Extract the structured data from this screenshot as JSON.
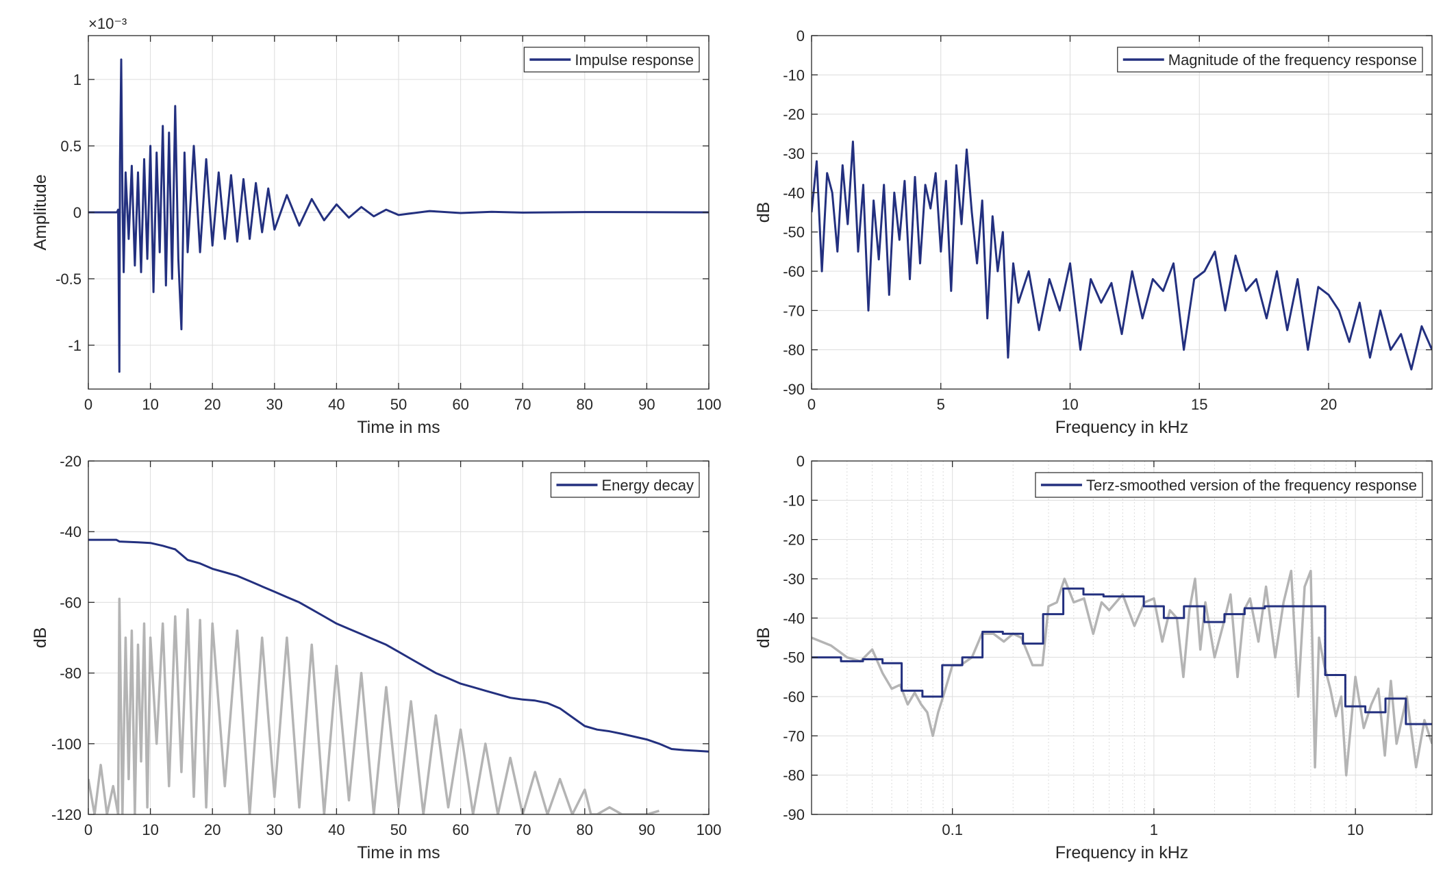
{
  "colors": {
    "series_blue": "#23307f",
    "gray_trace": "#b4b4b4",
    "grid": "#dcdcdc",
    "axis": "#262626"
  },
  "chart_data": [
    {
      "type": "line",
      "legend": [
        "Impulse response"
      ],
      "legend_location": "top-right",
      "xlabel": "Time in ms",
      "ylabel": "Amplitude",
      "exponent_label": "×10⁻³",
      "xlim": [
        0,
        100
      ],
      "ylim": [
        -1.33,
        1.33
      ],
      "xticks": [
        0,
        10,
        20,
        30,
        40,
        50,
        60,
        70,
        80,
        90,
        100
      ],
      "xtick_labels": [
        "0",
        "10",
        "20",
        "30",
        "40",
        "50",
        "60",
        "70",
        "80",
        "90",
        "100"
      ],
      "yticks": [
        -1,
        -0.5,
        0,
        0.5,
        1
      ],
      "ytick_labels": [
        "-1",
        "-0.5",
        "0",
        "0.5",
        "1"
      ],
      "grid": true,
      "series": [
        {
          "color": "#23307f",
          "x": [
            0,
            4.6,
            4.8,
            5.0,
            5.1,
            5.3,
            5.5,
            5.7,
            6.0,
            6.5,
            7,
            7.5,
            8,
            8.5,
            9,
            9.5,
            10,
            10.5,
            11,
            11.5,
            12,
            12.5,
            13,
            13.5,
            14,
            14.5,
            15,
            15.5,
            16,
            17,
            18,
            19,
            20,
            21,
            22,
            23,
            24,
            25,
            26,
            27,
            28,
            29,
            30,
            32,
            34,
            36,
            38,
            40,
            42,
            44,
            46,
            48,
            50,
            55,
            60,
            65,
            70,
            80,
            90,
            100
          ],
          "y": [
            0,
            0,
            0.02,
            -1.2,
            0.38,
            1.15,
            0.1,
            -0.45,
            0.3,
            -0.2,
            0.35,
            -0.4,
            0.3,
            -0.45,
            0.4,
            -0.35,
            0.5,
            -0.6,
            0.45,
            -0.3,
            0.65,
            -0.55,
            0.6,
            -0.5,
            0.8,
            -0.35,
            -0.88,
            0.45,
            -0.3,
            0.5,
            -0.3,
            0.4,
            -0.25,
            0.3,
            -0.2,
            0.28,
            -0.22,
            0.25,
            -0.2,
            0.22,
            -0.15,
            0.18,
            -0.13,
            0.13,
            -0.1,
            0.1,
            -0.06,
            0.06,
            -0.04,
            0.04,
            -0.03,
            0.02,
            -0.02,
            0.01,
            -0.005,
            0.004,
            -0.002,
            0.002,
            0.001,
            0
          ]
        }
      ]
    },
    {
      "type": "line",
      "legend": [
        "Magnitude of the frequency response"
      ],
      "legend_location": "top-right",
      "xlabel": "Frequency in kHz",
      "ylabel": "dB",
      "xlim": [
        0,
        24
      ],
      "ylim": [
        -90,
        0
      ],
      "xticks": [
        0,
        5,
        10,
        15,
        20
      ],
      "xtick_labels": [
        "0",
        "5",
        "10",
        "15",
        "20"
      ],
      "yticks": [
        -90,
        -80,
        -70,
        -60,
        -50,
        -40,
        -30,
        -20,
        -10,
        0
      ],
      "ytick_labels": [
        "-90",
        "-80",
        "-70",
        "-60",
        "-50",
        "-40",
        "-30",
        "-20",
        "-10",
        "0"
      ],
      "grid": true,
      "series": [
        {
          "color": "#23307f",
          "x": [
            0,
            0.2,
            0.4,
            0.6,
            0.8,
            1.0,
            1.2,
            1.4,
            1.6,
            1.8,
            2.0,
            2.2,
            2.4,
            2.6,
            2.8,
            3.0,
            3.2,
            3.4,
            3.6,
            3.8,
            4.0,
            4.2,
            4.4,
            4.6,
            4.8,
            5.0,
            5.2,
            5.4,
            5.6,
            5.8,
            6.0,
            6.2,
            6.4,
            6.6,
            6.8,
            7.0,
            7.2,
            7.4,
            7.6,
            7.8,
            8.0,
            8.4,
            8.8,
            9.2,
            9.6,
            10,
            10.4,
            10.8,
            11.2,
            11.6,
            12,
            12.4,
            12.8,
            13.2,
            13.6,
            14,
            14.4,
            14.8,
            15.2,
            15.6,
            16,
            16.4,
            16.8,
            17.2,
            17.6,
            18,
            18.4,
            18.8,
            19.2,
            19.6,
            20,
            20.4,
            20.8,
            21.2,
            21.6,
            22,
            22.4,
            22.8,
            23.2,
            23.6,
            24
          ],
          "y": [
            -45,
            -32,
            -60,
            -35,
            -40,
            -55,
            -33,
            -48,
            -27,
            -55,
            -38,
            -70,
            -42,
            -57,
            -38,
            -66,
            -40,
            -52,
            -37,
            -62,
            -36,
            -58,
            -38,
            -44,
            -35,
            -55,
            -37,
            -65,
            -33,
            -48,
            -29,
            -45,
            -58,
            -42,
            -72,
            -46,
            -60,
            -50,
            -82,
            -58,
            -68,
            -60,
            -75,
            -62,
            -70,
            -58,
            -80,
            -62,
            -68,
            -63,
            -76,
            -60,
            -72,
            -62,
            -65,
            -58,
            -80,
            -62,
            -60,
            -55,
            -70,
            -56,
            -65,
            -62,
            -72,
            -60,
            -75,
            -62,
            -80,
            -64,
            -66,
            -70,
            -78,
            -68,
            -82,
            -70,
            -80,
            -76,
            -85,
            -74,
            -80
          ]
        }
      ]
    },
    {
      "type": "line",
      "legend": [
        "Energy decay"
      ],
      "legend_location": "top-right",
      "xlabel": "Time in ms",
      "ylabel": "dB",
      "xlim": [
        0,
        100
      ],
      "ylim": [
        -120,
        -20
      ],
      "xticks": [
        0,
        10,
        20,
        30,
        40,
        50,
        60,
        70,
        80,
        90,
        100
      ],
      "xtick_labels": [
        "0",
        "10",
        "20",
        "30",
        "40",
        "50",
        "60",
        "70",
        "80",
        "90",
        "100"
      ],
      "yticks": [
        -120,
        -100,
        -80,
        -60,
        -40,
        -20
      ],
      "ytick_labels": [
        "-120",
        "-100",
        "-80",
        "-60",
        "-40",
        "-20"
      ],
      "grid": true,
      "series": [
        {
          "color": "#23307f",
          "x": [
            0,
            4.5,
            5,
            8,
            10,
            12,
            14,
            15,
            16,
            18,
            20,
            22,
            24,
            26,
            28,
            30,
            32,
            34,
            36,
            38,
            40,
            42,
            44,
            46,
            48,
            50,
            52,
            54,
            56,
            58,
            60,
            62,
            64,
            66,
            68,
            70,
            72,
            74,
            76,
            78,
            80,
            82,
            84,
            86,
            88,
            90,
            92,
            94,
            96,
            98,
            100
          ],
          "y": [
            -42.3,
            -42.3,
            -42.8,
            -43.0,
            -43.2,
            -44.0,
            -45.0,
            -46.5,
            -48.0,
            -49.0,
            -50.5,
            -51.5,
            -52.5,
            -54.0,
            -55.5,
            -57.0,
            -58.5,
            -60.0,
            -62.0,
            -64.0,
            -66.0,
            -67.5,
            -69.0,
            -70.5,
            -72.0,
            -74.0,
            -76.0,
            -78.0,
            -80.0,
            -81.5,
            -83.0,
            -84.0,
            -85.0,
            -86.0,
            -87.0,
            -87.5,
            -87.8,
            -88.5,
            -90.0,
            -92.5,
            -95.0,
            -96.0,
            -96.5,
            -97.2,
            -98.0,
            -98.8,
            -100.0,
            -101.5,
            -101.8,
            -102.0,
            -102.2
          ]
        },
        {
          "color": "#b4b4b4",
          "x": [
            0,
            1,
            2,
            3,
            4,
            4.8,
            5.0,
            5.5,
            6,
            6.5,
            7,
            7.5,
            8,
            8.5,
            9,
            9.5,
            10,
            11,
            12,
            13,
            14,
            15,
            16,
            17,
            18,
            19,
            20,
            22,
            24,
            26,
            28,
            30,
            32,
            34,
            36,
            38,
            40,
            42,
            44,
            46,
            48,
            50,
            52,
            54,
            56,
            58,
            60,
            62,
            64,
            66,
            68,
            70,
            72,
            74,
            76,
            78,
            80,
            81,
            82,
            84,
            86,
            90,
            92
          ],
          "y": [
            -110,
            -120,
            -106,
            -120,
            -112,
            -120,
            -59,
            -120,
            -70,
            -110,
            -68,
            -120,
            -72,
            -105,
            -66,
            -118,
            -70,
            -100,
            -66,
            -112,
            -64,
            -108,
            -62,
            -115,
            -65,
            -118,
            -66,
            -112,
            -68,
            -120,
            -70,
            -115,
            -70,
            -118,
            -72,
            -120,
            -78,
            -116,
            -80,
            -120,
            -84,
            -118,
            -88,
            -120,
            -92,
            -118,
            -96,
            -120,
            -100,
            -120,
            -104,
            -120,
            -108,
            -120,
            -110,
            -120,
            -113,
            -120,
            -120,
            -118,
            -120,
            -120,
            -119
          ]
        }
      ]
    },
    {
      "type": "line",
      "legend": [
        "Terz-smoothed version of the frequency response"
      ],
      "legend_location": "top-right",
      "xlabel": "Frequency in kHz",
      "ylabel": "dB",
      "xscale": "log",
      "xlim": [
        0.02,
        24
      ],
      "ylim": [
        -90,
        0
      ],
      "xticks": [
        0.1,
        1,
        10
      ],
      "xtick_labels": [
        "0.1",
        "1",
        "10"
      ],
      "yticks": [
        -90,
        -80,
        -70,
        -60,
        -50,
        -40,
        -30,
        -20,
        -10,
        0
      ],
      "ytick_labels": [
        "-90",
        "-80",
        "-70",
        "-60",
        "-50",
        "-40",
        "-30",
        "-20",
        "-10",
        "0"
      ],
      "grid": true,
      "series": [
        {
          "color": "#b4b4b4",
          "x": [
            0.02,
            0.025,
            0.03,
            0.035,
            0.04,
            0.045,
            0.05,
            0.055,
            0.06,
            0.065,
            0.07,
            0.075,
            0.08,
            0.085,
            0.09,
            0.1,
            0.11,
            0.125,
            0.14,
            0.16,
            0.18,
            0.2,
            0.22,
            0.25,
            0.28,
            0.3,
            0.33,
            0.36,
            0.4,
            0.45,
            0.5,
            0.55,
            0.6,
            0.7,
            0.8,
            0.9,
            1.0,
            1.1,
            1.2,
            1.3,
            1.4,
            1.5,
            1.6,
            1.7,
            1.8,
            2.0,
            2.2,
            2.4,
            2.6,
            2.8,
            3.0,
            3.3,
            3.6,
            4.0,
            4.4,
            4.8,
            5.2,
            5.6,
            6.0,
            6.3,
            6.6,
            7.0,
            7.5,
            8,
            8.5,
            9,
            10,
            11,
            12,
            13,
            14,
            15,
            16,
            18,
            20,
            22,
            24
          ],
          "y": [
            -45,
            -47,
            -50,
            -51,
            -48,
            -54,
            -58,
            -57,
            -62,
            -59,
            -62,
            -64,
            -70,
            -64,
            -60,
            -52,
            -52,
            -50,
            -44,
            -44,
            -46,
            -44,
            -45,
            -52,
            -52,
            -37,
            -36,
            -30,
            -36,
            -35,
            -44,
            -36,
            -38,
            -34,
            -42,
            -36,
            -35,
            -46,
            -38,
            -40,
            -55,
            -38,
            -30,
            -48,
            -36,
            -50,
            -42,
            -34,
            -55,
            -38,
            -35,
            -46,
            -32,
            -50,
            -36,
            -28,
            -60,
            -32,
            -28,
            -78,
            -45,
            -52,
            -58,
            -65,
            -60,
            -80,
            -55,
            -68,
            -62,
            -58,
            -75,
            -56,
            -72,
            -60,
            -78,
            -66,
            -72
          ]
        },
        {
          "color": "#23307f",
          "x": [
            0.02,
            0.028,
            0.028,
            0.036,
            0.036,
            0.045,
            0.045,
            0.056,
            0.056,
            0.071,
            0.071,
            0.089,
            0.089,
            0.112,
            0.112,
            0.141,
            0.141,
            0.178,
            0.178,
            0.224,
            0.224,
            0.282,
            0.282,
            0.355,
            0.355,
            0.447,
            0.447,
            0.562,
            0.562,
            0.708,
            0.708,
            0.891,
            0.891,
            1.12,
            1.12,
            1.41,
            1.41,
            1.78,
            1.78,
            2.24,
            2.24,
            2.82,
            2.82,
            3.55,
            3.55,
            4.47,
            4.47,
            5.62,
            5.62,
            7.08,
            7.08,
            8.91,
            8.91,
            11.2,
            11.2,
            14.1,
            14.1,
            17.8,
            17.8,
            24
          ],
          "y": [
            -50,
            -50,
            -51,
            -51,
            -50.5,
            -50.5,
            -51.5,
            -51.5,
            -58.5,
            -58.5,
            -60,
            -60,
            -52,
            -52,
            -50,
            -50,
            -43.5,
            -43.5,
            -44,
            -44,
            -46.5,
            -46.5,
            -39,
            -39,
            -32.5,
            -32.5,
            -34,
            -34,
            -34.5,
            -34.5,
            -34.5,
            -34.5,
            -37,
            -37,
            -40,
            -40,
            -37,
            -37,
            -41,
            -41,
            -39,
            -39,
            -37.5,
            -37.5,
            -37,
            -37,
            -37,
            -37,
            -37,
            -37,
            -54.5,
            -54.5,
            -62.5,
            -62.5,
            -64,
            -64,
            -60.5,
            -60.5,
            -67,
            -67
          ]
        }
      ]
    }
  ]
}
